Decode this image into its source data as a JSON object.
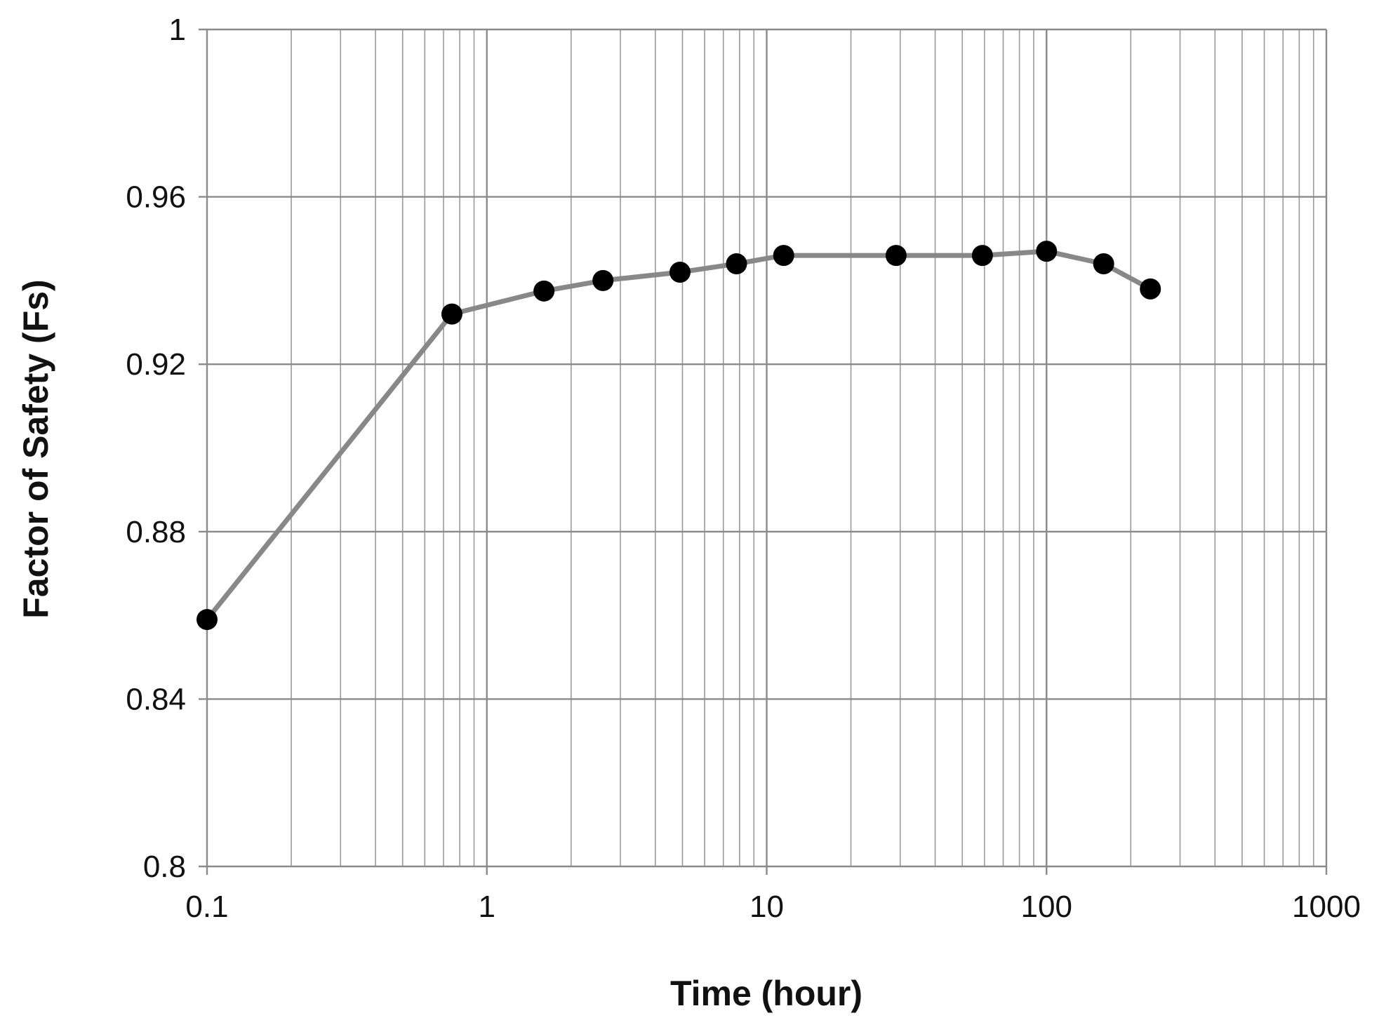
{
  "chart_data": {
    "type": "line",
    "title": "",
    "xlabel": "Time (hour)",
    "ylabel": "Factor of Safety (Fs)",
    "x_scale": "log",
    "xlim": [
      0.1,
      1000
    ],
    "ylim": [
      0.8,
      1.0
    ],
    "x_ticks": [
      0.1,
      1,
      10,
      100,
      1000
    ],
    "x_tick_labels": [
      "0.1",
      "1",
      "10",
      "100",
      "1000"
    ],
    "y_ticks": [
      0.8,
      0.84,
      0.88,
      0.92,
      0.96,
      1.0
    ],
    "y_tick_labels": [
      "0.8",
      "0.84",
      "0.88",
      "0.92",
      "0.96",
      "1"
    ],
    "grid": true,
    "legend": "none",
    "series": [
      {
        "line_color": "#888888",
        "marker_color": "#000000",
        "marker": "circle",
        "x": [
          0.1,
          0.75,
          1.6,
          2.6,
          4.9,
          7.8,
          11.5,
          29,
          59,
          100,
          160,
          235
        ],
        "y": [
          0.859,
          0.932,
          0.9375,
          0.94,
          0.942,
          0.944,
          0.946,
          0.946,
          0.946,
          0.947,
          0.944,
          0.938
        ]
      }
    ]
  }
}
